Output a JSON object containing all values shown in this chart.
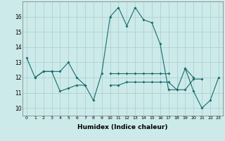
{
  "xlabel": "Humidex (Indice chaleur)",
  "x": [
    0,
    1,
    2,
    3,
    4,
    5,
    6,
    7,
    8,
    9,
    10,
    11,
    12,
    13,
    14,
    15,
    16,
    17,
    18,
    19,
    20,
    21,
    22,
    23
  ],
  "line1": [
    13.3,
    12.0,
    12.4,
    12.4,
    12.4,
    13.0,
    12.0,
    11.5,
    10.5,
    12.3,
    16.0,
    16.6,
    15.4,
    16.6,
    15.8,
    15.6,
    14.2,
    11.2,
    11.2,
    12.6,
    11.1,
    10.0,
    10.5,
    12.0
  ],
  "line2": [
    null,
    12.0,
    12.4,
    12.4,
    11.1,
    11.3,
    11.5,
    11.5,
    null,
    null,
    null,
    null,
    null,
    null,
    null,
    null,
    null,
    null,
    null,
    null,
    null,
    null,
    null,
    null
  ],
  "line3": [
    null,
    null,
    null,
    null,
    null,
    null,
    null,
    null,
    null,
    null,
    11.5,
    11.5,
    11.7,
    11.7,
    11.7,
    11.7,
    11.7,
    11.7,
    11.2,
    11.2,
    11.9,
    11.9,
    null,
    null
  ],
  "line4": [
    null,
    null,
    null,
    null,
    null,
    null,
    null,
    null,
    null,
    null,
    12.3,
    12.3,
    12.3,
    12.3,
    12.3,
    12.3,
    12.3,
    12.3,
    null,
    12.6,
    12.0,
    null,
    null,
    null
  ],
  "color": "#1a6b6b",
  "bg_color": "#cceaea",
  "grid_color": "#aacccc",
  "ylim": [
    9.5,
    17.0
  ],
  "xlim": [
    -0.5,
    23.5
  ],
  "yticks": [
    10,
    11,
    12,
    13,
    14,
    15,
    16
  ],
  "xticks": [
    0,
    1,
    2,
    3,
    4,
    5,
    6,
    7,
    8,
    9,
    10,
    11,
    12,
    13,
    14,
    15,
    16,
    17,
    18,
    19,
    20,
    21,
    22,
    23
  ]
}
